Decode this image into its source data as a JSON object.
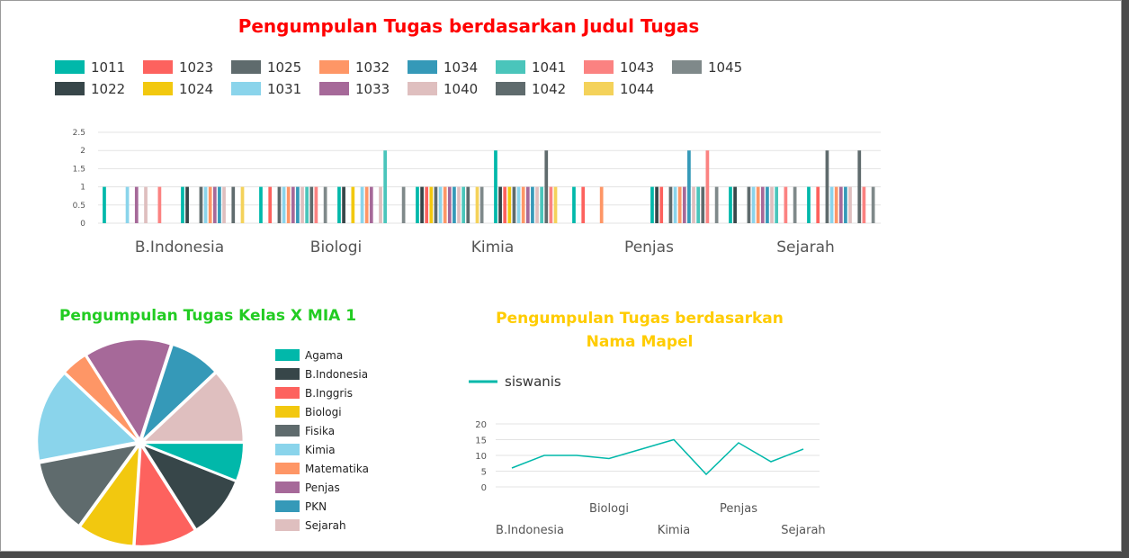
{
  "chart_data": [
    {
      "type": "bar",
      "title": "Pengumpulan Tugas berdasarkan Judul Tugas",
      "categories": [
        "",
        "B.Indonesia",
        "",
        "Biologi",
        "",
        "Kimia",
        "",
        "Penjas",
        "",
        "Sejarah"
      ],
      "xlabels": [
        "B.Indonesia",
        "Biologi",
        "Kimia",
        "Penjas",
        "Sejarah"
      ],
      "yticks": [
        "0",
        "0.5",
        "1",
        "1.5",
        "2",
        "2.5"
      ],
      "ylim": [
        0,
        2.5
      ],
      "grid": true,
      "legend_position": "top",
      "series": [
        {
          "name": "1011",
          "color": "#01B8AA",
          "values": [
            1,
            1,
            1,
            1,
            1,
            2,
            1,
            1,
            1,
            1
          ]
        },
        {
          "name": "1022",
          "color": "#374649",
          "values": [
            0,
            1,
            0,
            1,
            1,
            1,
            0,
            1,
            1,
            0
          ]
        },
        {
          "name": "1023",
          "color": "#FD625E",
          "values": [
            0,
            0,
            1,
            0,
            1,
            1,
            1,
            1,
            0,
            1
          ]
        },
        {
          "name": "1024",
          "color": "#F2C80F",
          "values": [
            0,
            0,
            0,
            1,
            1,
            1,
            0,
            0,
            0,
            0
          ]
        },
        {
          "name": "1025",
          "color": "#5F6B6D",
          "values": [
            0,
            1,
            1,
            0,
            1,
            1,
            0,
            1,
            1,
            2
          ]
        },
        {
          "name": "1031",
          "color": "#8AD4EB",
          "values": [
            1,
            1,
            1,
            1,
            1,
            1,
            0,
            1,
            1,
            1
          ]
        },
        {
          "name": "1032",
          "color": "#FE9666",
          "values": [
            0,
            1,
            1,
            1,
            1,
            1,
            1,
            1,
            1,
            1
          ]
        },
        {
          "name": "1033",
          "color": "#A66999",
          "values": [
            1,
            1,
            1,
            1,
            1,
            1,
            0,
            1,
            1,
            1
          ]
        },
        {
          "name": "1034",
          "color": "#3599B8",
          "values": [
            0,
            1,
            1,
            0,
            1,
            1,
            0,
            2,
            1,
            1
          ]
        },
        {
          "name": "1040",
          "color": "#DFBFBF",
          "values": [
            1,
            1,
            1,
            1,
            1,
            1,
            0,
            1,
            1,
            1
          ]
        },
        {
          "name": "1041",
          "color": "#4AC5BB",
          "values": [
            0,
            0,
            1,
            2,
            1,
            1,
            0,
            1,
            1,
            0
          ]
        },
        {
          "name": "1042",
          "color": "#5F6B6D",
          "values": [
            0,
            1,
            1,
            0,
            1,
            2,
            0,
            1,
            0,
            2
          ]
        },
        {
          "name": "1043",
          "color": "#FB8281",
          "values": [
            1,
            0,
            1,
            0,
            0,
            1,
            0,
            2,
            1,
            1
          ]
        },
        {
          "name": "1044",
          "color": "#F4D25A",
          "values": [
            0,
            1,
            0,
            0,
            1,
            1,
            0,
            0,
            0,
            0
          ]
        },
        {
          "name": "1045",
          "color": "#7F898A",
          "values": [
            0,
            0,
            1,
            1,
            1,
            0,
            0,
            1,
            1,
            1
          ]
        }
      ]
    },
    {
      "type": "pie",
      "title": "Pengumpulan Tugas Kelas X MIA 1",
      "legend_position": "right",
      "slices": [
        {
          "label": "Agama",
          "value": 6,
          "color": "#01B8AA"
        },
        {
          "label": "B.Indonesia",
          "value": 10,
          "color": "#374649"
        },
        {
          "label": "B.Inggris",
          "value": 10,
          "color": "#FD625E"
        },
        {
          "label": "Biologi",
          "value": 9,
          "color": "#F2C80F"
        },
        {
          "label": "Fisika",
          "value": 12,
          "color": "#5F6B6D"
        },
        {
          "label": "Kimia",
          "value": 15,
          "color": "#8AD4EB"
        },
        {
          "label": "Matematika",
          "value": 4,
          "color": "#FE9666"
        },
        {
          "label": "Penjas",
          "value": 14,
          "color": "#A66999"
        },
        {
          "label": "PKN",
          "value": 8,
          "color": "#3599B8"
        },
        {
          "label": "Sejarah",
          "value": 12,
          "color": "#DFBFBF"
        }
      ]
    },
    {
      "type": "line",
      "title": "Pengumpulan Tugas berdasarkan Nama Mapel",
      "legend_position": "top-left",
      "series": [
        {
          "name": "siswanis",
          "color": "#01B8AA",
          "values": [
            6,
            10,
            10,
            9,
            12,
            15,
            4,
            14,
            8,
            12
          ]
        }
      ],
      "xlabels_row1": [
        "Biologi",
        "Penjas"
      ],
      "xlabels_row2": [
        "B.Indonesia",
        "Kimia",
        "Sejarah"
      ],
      "yticks": [
        "0",
        "5",
        "10",
        "15",
        "20"
      ],
      "ylim": [
        0,
        20
      ],
      "grid": true
    }
  ]
}
